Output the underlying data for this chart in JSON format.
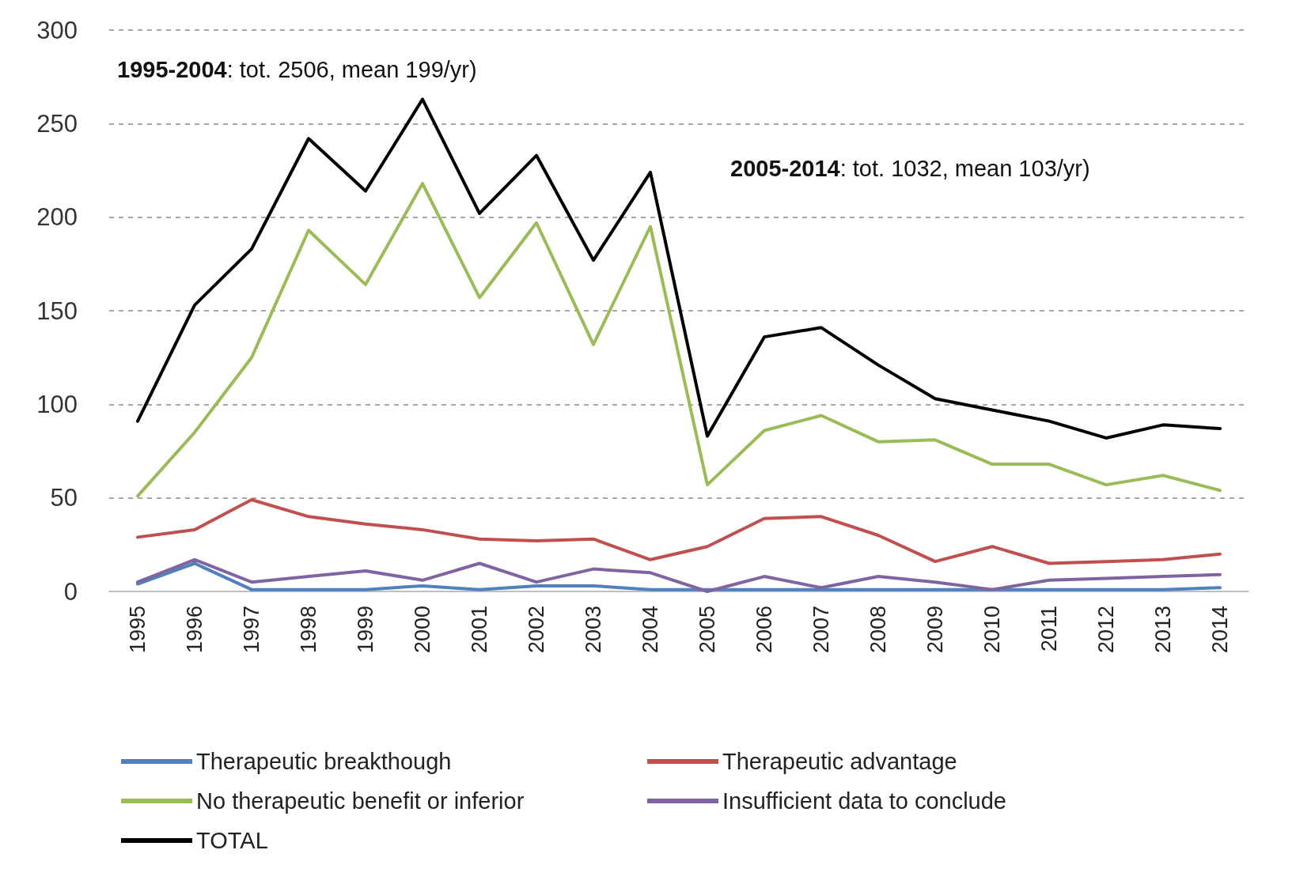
{
  "chart_data": {
    "type": "line",
    "categories": [
      "1995",
      "1996",
      "1997",
      "1998",
      "1999",
      "2000",
      "2001",
      "2002",
      "2003",
      "2004",
      "2005",
      "2006",
      "2007",
      "2008",
      "2009",
      "2010",
      "2011",
      "2012",
      "2013",
      "2014"
    ],
    "ylim": [
      0,
      300
    ],
    "yticks": [
      0,
      50,
      100,
      150,
      200,
      250,
      300
    ],
    "grid": "y",
    "legend": "bottom",
    "marker": "none",
    "line_style": "solid",
    "annotations": [
      "1995-2004: tot. 2506, mean 199/yr)",
      "2005-2014: tot. 1032, mean 103/yr)"
    ],
    "series": [
      {
        "name": "Therapeutic breakthough",
        "color": "#4f81bd",
        "values": [
          4,
          15,
          1,
          1,
          1,
          3,
          1,
          3,
          3,
          1,
          1,
          1,
          1,
          1,
          1,
          1,
          1,
          1,
          1,
          2
        ]
      },
      {
        "name": "Therapeutic advantage",
        "color": "#c0504d",
        "values": [
          29,
          33,
          49,
          40,
          36,
          33,
          28,
          27,
          28,
          17,
          24,
          39,
          40,
          30,
          16,
          24,
          15,
          16,
          17,
          20
        ]
      },
      {
        "name": "No therapeutic benefit or inferior",
        "color": "#9bbb59",
        "values": [
          51,
          85,
          125,
          193,
          164,
          218,
          157,
          197,
          132,
          195,
          57,
          86,
          94,
          80,
          81,
          68,
          68,
          57,
          62,
          54
        ]
      },
      {
        "name": "Insufficient data to conclude",
        "color": "#8064a2",
        "values": [
          5,
          17,
          5,
          8,
          11,
          6,
          15,
          5,
          12,
          10,
          0,
          8,
          2,
          8,
          5,
          1,
          6,
          7,
          8,
          9
        ]
      },
      {
        "name": "TOTAL",
        "color": "#000000",
        "values": [
          91,
          153,
          183,
          242,
          214,
          263,
          202,
          233,
          177,
          224,
          83,
          136,
          141,
          121,
          103,
          97,
          91,
          82,
          89,
          87
        ]
      }
    ]
  }
}
